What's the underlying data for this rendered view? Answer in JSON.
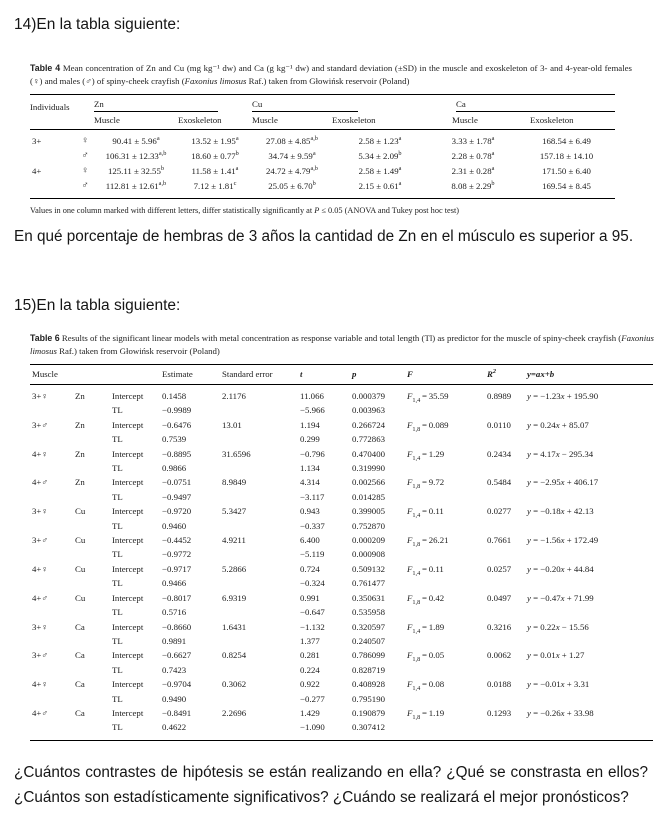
{
  "page": {
    "heading14": "14)En la tabla siguiente:",
    "question14": "En qué porcentaje de hembras de 3 años la cantidad de Zn en el músculo es superior a 95.",
    "heading15": "15)En la tabla siguiente:",
    "question15_line1": "¿Cuántos contrastes de hipótesis se están realizando en ella? ¿Qué se constrasta en ellos?",
    "question15_line2": "¿Cuántos son estadísticamente significativos? ¿Cuándo se realizará el mejor pronósticos?"
  },
  "table4": {
    "caption_label": "Table 4",
    "caption_pre": " Mean concentration of Zn and Cu (mg kg⁻¹ dw) and Ca (g kg⁻¹ dw) and standard deviation (±SD) in the muscle and exoskeleton of 3- and 4-year-old females (♀) and males (♂) of spiny-cheek crayfish (",
    "caption_species": "Faxonius limosus",
    "caption_post": " Raf.) taken from Głowińsk reservoir (Poland)",
    "corner_header": "Individuals",
    "groups": [
      "Zn",
      "Cu",
      "Ca"
    ],
    "subheaders": [
      "Muscle",
      "Exoskeleton"
    ],
    "rows": [
      {
        "age": "3+",
        "sex": "♀",
        "cells": [
          {
            "v": "90.41 ± 5.96",
            "s": "a"
          },
          {
            "v": "13.52 ± 1.95",
            "s": "a"
          },
          {
            "v": "27.08 ± 4.85",
            "s": "a,b"
          },
          {
            "v": "2.58 ± 1.23",
            "s": "a"
          },
          {
            "v": "3.33 ± 1.78",
            "s": "a"
          },
          {
            "v": "168.54 ± 6.49",
            "s": ""
          }
        ]
      },
      {
        "age": "",
        "sex": "♂",
        "cells": [
          {
            "v": "106.31 ± 12.33",
            "s": "a,b"
          },
          {
            "v": "18.60 ± 0.77",
            "s": "b"
          },
          {
            "v": "34.74 ± 9.59",
            "s": "a"
          },
          {
            "v": "5.34 ± 2.09",
            "s": "b"
          },
          {
            "v": "2.28 ± 0.78",
            "s": "a"
          },
          {
            "v": "157.18 ± 14.10",
            "s": ""
          }
        ]
      },
      {
        "age": "4+",
        "sex": "♀",
        "cells": [
          {
            "v": "125.11 ± 32.55",
            "s": "b"
          },
          {
            "v": "11.58 ± 1.41",
            "s": "a"
          },
          {
            "v": "24.72 ± 4.79",
            "s": "a,b"
          },
          {
            "v": "2.58 ± 1.49",
            "s": "a"
          },
          {
            "v": "2.31 ± 0.28",
            "s": "a"
          },
          {
            "v": "171.50 ± 6.40",
            "s": ""
          }
        ]
      },
      {
        "age": "",
        "sex": "♂",
        "cells": [
          {
            "v": "112.81 ± 12.61",
            "s": "a,b"
          },
          {
            "v": "7.12 ± 1.81",
            "s": "c"
          },
          {
            "v": "25.05 ± 6.70",
            "s": "b"
          },
          {
            "v": "2.15 ± 0.61",
            "s": "a"
          },
          {
            "v": "8.08 ± 2.29",
            "s": "b"
          },
          {
            "v": "169.54 ± 8.45",
            "s": ""
          }
        ]
      }
    ],
    "footnote_pre": "Values in one column marked with different letters, differ statistically significantly at ",
    "footnote_italic": "P",
    "footnote_post": " ≤ 0.05 (ANOVA and Tukey post hoc test)"
  },
  "table6": {
    "caption_label": "Table 6",
    "caption_pre": " Results of the significant linear models with metal concentration as response variable and total length (Tl) as predictor for the muscle of spiny-cheek crayfish (",
    "caption_species": "Faxonius limosus",
    "caption_post": " Raf.) taken from Głowińsk reservoir (Poland)",
    "headers": {
      "muscle": "Muscle",
      "estimate": "Estimate",
      "se": "Standard error",
      "t": "t",
      "p": "p",
      "F": "F",
      "R": "R",
      "R_sup": "2",
      "eq": "y=ax+b"
    },
    "term_intercept": "Intercept",
    "term_tl": "TL",
    "groups": [
      {
        "group": "3+♀",
        "metal": "Zn",
        "intercept": {
          "est": "0.1458",
          "se": "2.1176",
          "t": "11.066",
          "p": "0.000379"
        },
        "tl": {
          "est": "−0.9989",
          "t": "−5.966",
          "p": "0.003963"
        },
        "f_sub": "1,4",
        "f_val": "35.59",
        "r2": "0.8989",
        "eq_a": "−1.23",
        "eq_b": "+ 195.90"
      },
      {
        "group": "3+♂",
        "metal": "Zn",
        "intercept": {
          "est": "−0.6476",
          "se": "13.01",
          "t": "1.194",
          "p": "0.266724"
        },
        "tl": {
          "est": "0.7539",
          "t": "0.299",
          "p": "0.772863"
        },
        "f_sub": "1,8",
        "f_val": "0.089",
        "r2": "0.0110",
        "eq_a": "0.24",
        "eq_b": "+ 85.07"
      },
      {
        "group": "4+♀",
        "metal": "Zn",
        "intercept": {
          "est": "−0.8895",
          "se": "31.6596",
          "t": "−0.796",
          "p": "0.470400"
        },
        "tl": {
          "est": "0.9866",
          "t": "1.134",
          "p": "0.319990"
        },
        "f_sub": "1,4",
        "f_val": "1.29",
        "r2": "0.2434",
        "eq_a": "4.17",
        "eq_b": "− 295.34"
      },
      {
        "group": "4+♂",
        "metal": "Zn",
        "intercept": {
          "est": "−0.0751",
          "se": "8.9849",
          "t": "4.314",
          "p": "0.002566"
        },
        "tl": {
          "est": "−0.9497",
          "t": "−3.117",
          "p": "0.014285"
        },
        "f_sub": "1,8",
        "f_val": "9.72",
        "r2": "0.5484",
        "eq_a": "−2.95",
        "eq_b": "+ 406.17"
      },
      {
        "group": "3+♀",
        "metal": "Cu",
        "intercept": {
          "est": "−0.9720",
          "se": "5.3427",
          "t": "0.943",
          "p": "0.399005"
        },
        "tl": {
          "est": "0.9460",
          "t": "−0.337",
          "p": "0.752870"
        },
        "f_sub": "1,4",
        "f_val": "0.11",
        "r2": "0.0277",
        "eq_a": "−0.18",
        "eq_b": "+ 42.13"
      },
      {
        "group": "3+♂",
        "metal": "Cu",
        "intercept": {
          "est": "−0.4452",
          "se": "4.9211",
          "t": "6.400",
          "p": "0.000209"
        },
        "tl": {
          "est": "−0.9772",
          "t": "−5.119",
          "p": "0.000908"
        },
        "f_sub": "1,8",
        "f_val": "26.21",
        "r2": "0.7661",
        "eq_a": "−1.56",
        "eq_b": "+ 172.49"
      },
      {
        "group": "4+♀",
        "metal": "Cu",
        "intercept": {
          "est": "−0.9717",
          "se": "5.2866",
          "t": "0.724",
          "p": "0.509132"
        },
        "tl": {
          "est": "0.9466",
          "t": "−0.324",
          "p": "0.761477"
        },
        "f_sub": "1,4",
        "f_val": "0.11",
        "r2": "0.0257",
        "eq_a": "−0.20",
        "eq_b": "+ 44.84"
      },
      {
        "group": "4+♂",
        "metal": "Cu",
        "intercept": {
          "est": "−0.8017",
          "se": "6.9319",
          "t": "0.991",
          "p": "0.350631"
        },
        "tl": {
          "est": "0.5716",
          "t": "−0.647",
          "p": "0.535958"
        },
        "f_sub": "1,8",
        "f_val": "0.42",
        "r2": "0.0497",
        "eq_a": "−0.47",
        "eq_b": "+ 71.99"
      },
      {
        "group": "3+♀",
        "metal": "Ca",
        "intercept": {
          "est": "−0.8660",
          "se": "1.6431",
          "t": "−1.132",
          "p": "0.320597"
        },
        "tl": {
          "est": "0.9891",
          "t": "1.377",
          "p": "0.240507"
        },
        "f_sub": "1,4",
        "f_val": "1.89",
        "r2": "0.3216",
        "eq_a": "0.22",
        "eq_b": "− 15.56"
      },
      {
        "group": "3+♂",
        "metal": "Ca",
        "intercept": {
          "est": "−0.6627",
          "se": "0.8254",
          "t": "0.281",
          "p": "0.786099"
        },
        "tl": {
          "est": "0.7423",
          "t": "0.224",
          "p": "0.828719"
        },
        "f_sub": "1,8",
        "f_val": "0.05",
        "r2": "0.0062",
        "eq_a": "0.01",
        "eq_b": "+ 1.27"
      },
      {
        "group": "4+♀",
        "metal": "Ca",
        "intercept": {
          "est": "−0.9704",
          "se": "0.3062",
          "t": "0.922",
          "p": "0.408928"
        },
        "tl": {
          "est": "0.9490",
          "t": "−0.277",
          "p": "0.795190"
        },
        "f_sub": "1,4",
        "f_val": "0.08",
        "r2": "0.0188",
        "eq_a": "−0.01",
        "eq_b": "+ 3.31"
      },
      {
        "group": "4+♂",
        "metal": "Ca",
        "intercept": {
          "est": "−0.8491",
          "se": "2.2696",
          "t": "1.429",
          "p": "0.190879"
        },
        "tl": {
          "est": "0.4622",
          "t": "−1.090",
          "p": "0.307412"
        },
        "f_sub": "1,8",
        "f_val": "1.19",
        "r2": "0.1293",
        "eq_a": "−0.26",
        "eq_b": "+ 33.98"
      }
    ]
  }
}
